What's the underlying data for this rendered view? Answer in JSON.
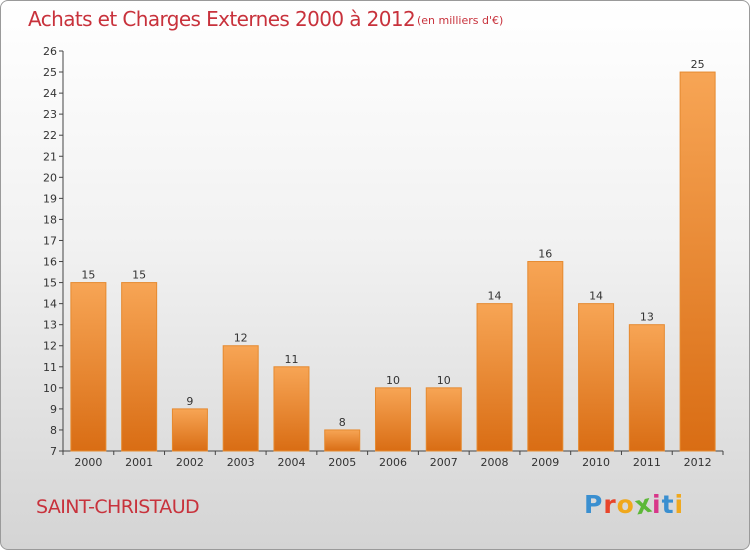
{
  "header": {
    "title": "Achats et Charges Externes 2000 à 2012",
    "subtitle": "(en milliers d'€)"
  },
  "footer": {
    "commune": "SAINT-CHRISTAUD",
    "logo": {
      "letters": [
        "P",
        "r",
        "o",
        "x",
        "i",
        "t",
        "i"
      ],
      "colors": [
        "#3a8fd0",
        "#e8452b",
        "#f0a81c",
        "#5db838",
        "#d8368a",
        "#3a8fd0",
        "#f0a81c"
      ]
    }
  },
  "chart_data": {
    "type": "bar",
    "title": "Achats et Charges Externes 2000 à 2012",
    "subtitle": "(en milliers d'€)",
    "xlabel": "",
    "ylabel": "",
    "categories": [
      "2000",
      "2001",
      "2002",
      "2003",
      "2004",
      "2005",
      "2006",
      "2007",
      "2008",
      "2009",
      "2010",
      "2011",
      "2012"
    ],
    "values": [
      15,
      15,
      9,
      12,
      11,
      8,
      10,
      10,
      14,
      16,
      14,
      13,
      25
    ],
    "ylim": [
      7,
      26
    ],
    "yticks": [
      7,
      8,
      9,
      10,
      11,
      12,
      13,
      14,
      15,
      16,
      17,
      18,
      19,
      20,
      21,
      22,
      23,
      24,
      25,
      26
    ],
    "bar_color": "#f0953a",
    "grid": false
  }
}
